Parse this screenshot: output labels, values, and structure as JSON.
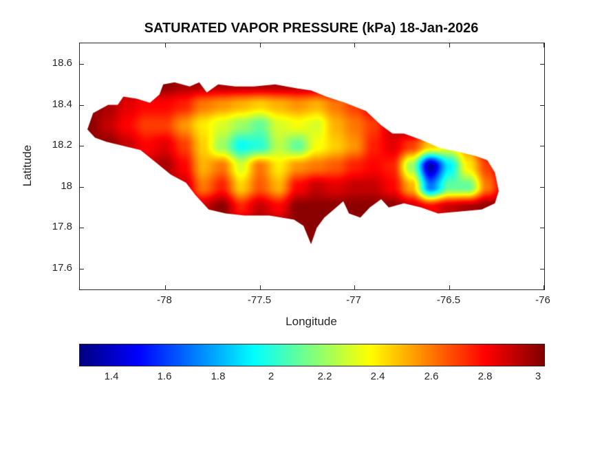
{
  "chart_data": {
    "type": "heatmap",
    "title": "SATURATED VAPOR PRESSURE (kPa) 18-Jan-2026",
    "units": "kPa",
    "xlabel": "Longitude",
    "ylabel": "Latitude",
    "xlim": [
      -78.45,
      -76.0
    ],
    "ylim": [
      17.5,
      18.7
    ],
    "xticks": {
      "values": [
        -78,
        -77.5,
        -77,
        -76.5,
        -76
      ],
      "labels": [
        "-78",
        "-77.5",
        "-77",
        "-76.5",
        "-76"
      ]
    },
    "yticks": {
      "values": [
        18.6,
        18.4,
        18.2,
        18.0,
        17.8,
        17.6
      ],
      "labels": [
        "18.6",
        "18.4",
        "18.2",
        "18",
        "17.8",
        "17.6"
      ]
    },
    "colorbar": {
      "orientation": "horizontal",
      "colormap": "jet",
      "cmin": 1.28,
      "cmax": 3.02,
      "tick_values": [
        1.4,
        1.6,
        1.8,
        2.0,
        2.2,
        2.4,
        2.6,
        2.8,
        3.0
      ],
      "tick_labels": [
        "1.4",
        "1.6",
        "1.8",
        "2",
        "2.2",
        "2.4",
        "2.6",
        "2.8",
        "3"
      ]
    },
    "outline": [
      [
        -78.41,
        18.28
      ],
      [
        -78.38,
        18.36
      ],
      [
        -78.3,
        18.4
      ],
      [
        -78.25,
        18.4
      ],
      [
        -78.22,
        18.44
      ],
      [
        -78.15,
        18.43
      ],
      [
        -78.08,
        18.41
      ],
      [
        -78.03,
        18.45
      ],
      [
        -78.01,
        18.5
      ],
      [
        -77.95,
        18.51
      ],
      [
        -77.87,
        18.49
      ],
      [
        -77.82,
        18.51
      ],
      [
        -77.78,
        18.46
      ],
      [
        -77.72,
        18.5
      ],
      [
        -77.63,
        18.49
      ],
      [
        -77.53,
        18.49
      ],
      [
        -77.42,
        18.5
      ],
      [
        -77.3,
        18.48
      ],
      [
        -77.23,
        18.47
      ],
      [
        -77.15,
        18.44
      ],
      [
        -77.05,
        18.41
      ],
      [
        -76.94,
        18.37
      ],
      [
        -76.86,
        18.3
      ],
      [
        -76.8,
        18.26
      ],
      [
        -76.74,
        18.26
      ],
      [
        -76.65,
        18.23
      ],
      [
        -76.55,
        18.19
      ],
      [
        -76.45,
        18.17
      ],
      [
        -76.36,
        18.15
      ],
      [
        -76.3,
        18.13
      ],
      [
        -76.26,
        18.07
      ],
      [
        -76.24,
        17.98
      ],
      [
        -76.26,
        17.92
      ],
      [
        -76.33,
        17.89
      ],
      [
        -76.45,
        17.88
      ],
      [
        -76.56,
        17.87
      ],
      [
        -76.65,
        17.9
      ],
      [
        -76.74,
        17.92
      ],
      [
        -76.82,
        17.9
      ],
      [
        -76.86,
        17.94
      ],
      [
        -76.92,
        17.9
      ],
      [
        -76.97,
        17.85
      ],
      [
        -77.03,
        17.87
      ],
      [
        -77.06,
        17.93
      ],
      [
        -77.11,
        17.89
      ],
      [
        -77.16,
        17.85
      ],
      [
        -77.2,
        17.8
      ],
      [
        -77.23,
        17.72
      ],
      [
        -77.27,
        17.81
      ],
      [
        -77.32,
        17.84
      ],
      [
        -77.45,
        17.86
      ],
      [
        -77.58,
        17.86
      ],
      [
        -77.68,
        17.87
      ],
      [
        -77.77,
        17.89
      ],
      [
        -77.84,
        17.96
      ],
      [
        -77.89,
        18.02
      ],
      [
        -77.97,
        18.06
      ],
      [
        -78.05,
        18.12
      ],
      [
        -78.13,
        18.18
      ],
      [
        -78.22,
        18.2
      ],
      [
        -78.31,
        18.22
      ],
      [
        -78.37,
        18.24
      ]
    ],
    "grid": {
      "lon0": -78.4,
      "dlon": 0.1,
      "lat0": 18.6,
      "dlat": -0.1,
      "values": [
        [
          3,
          3,
          3,
          3,
          3,
          3,
          3,
          3,
          3,
          3,
          3,
          3,
          3,
          3,
          3,
          3,
          3,
          3,
          3,
          3,
          3,
          3,
          3,
          3,
          3
        ],
        [
          3,
          3,
          3,
          3,
          3,
          2.95,
          2.95,
          2.95,
          2.95,
          2.95,
          2.95,
          2.95,
          2.95,
          3,
          3,
          3,
          3,
          3,
          3,
          3,
          3,
          3,
          3,
          3,
          3
        ],
        [
          3,
          2.95,
          2.85,
          2.8,
          2.8,
          2.75,
          2.6,
          2.55,
          2.5,
          2.45,
          2.5,
          2.55,
          2.5,
          2.6,
          2.7,
          2.85,
          2.95,
          3,
          3,
          3,
          3,
          3,
          3,
          3,
          3
        ],
        [
          3,
          2.9,
          2.8,
          2.7,
          2.7,
          2.55,
          2.4,
          2.3,
          2.2,
          2.1,
          2.3,
          2.35,
          2.3,
          2.5,
          2.6,
          2.7,
          2.9,
          3,
          3,
          3,
          3,
          3,
          3,
          3,
          3
        ],
        [
          3,
          3,
          2.9,
          2.8,
          2.85,
          2.7,
          2.45,
          2.2,
          1.95,
          2.0,
          2.25,
          2.1,
          2.35,
          2.45,
          2.55,
          2.75,
          2.85,
          2.7,
          2.45,
          2.35,
          2.55,
          2.9,
          3,
          3,
          3
        ],
        [
          3,
          3,
          2.95,
          2.9,
          2.95,
          2.8,
          2.5,
          2.6,
          2.3,
          2.6,
          2.4,
          2.55,
          2.6,
          2.65,
          2.75,
          2.8,
          2.75,
          2.2,
          1.35,
          1.9,
          2.4,
          2.7,
          2.95,
          3,
          3
        ],
        [
          3,
          3,
          3,
          3,
          2.95,
          2.9,
          2.6,
          2.75,
          2.45,
          2.65,
          2.5,
          2.8,
          2.9,
          2.85,
          2.9,
          2.9,
          2.8,
          2.5,
          1.7,
          2.1,
          2.1,
          2.6,
          2.9,
          3,
          3
        ],
        [
          3,
          3,
          3,
          3,
          3,
          3,
          2.9,
          3,
          2.75,
          2.9,
          2.8,
          3,
          3,
          3,
          3,
          3,
          3,
          2.9,
          2.8,
          2.9,
          2.95,
          3,
          3,
          3,
          3
        ],
        [
          3,
          3,
          3,
          3,
          3,
          3,
          3,
          3,
          3,
          3,
          3,
          3,
          3,
          3,
          3,
          3,
          3,
          3,
          3,
          3,
          3,
          3,
          3,
          3,
          3
        ],
        [
          3,
          3,
          3,
          3,
          3,
          3,
          3,
          3,
          3,
          3,
          3,
          3,
          3,
          3,
          3,
          3,
          3,
          3,
          3,
          3,
          3,
          3,
          3,
          3,
          3
        ]
      ]
    }
  }
}
